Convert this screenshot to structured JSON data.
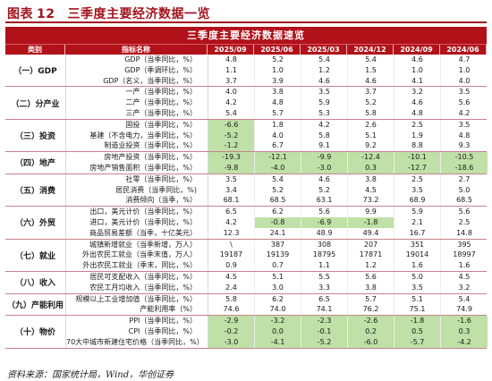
{
  "figure": {
    "label": "图表",
    "number": "12",
    "title": "三季度主要经济数据一览"
  },
  "table": {
    "banner": "三季度主要经济数据速览",
    "headers": {
      "category": "类别",
      "indicator": "指标名称",
      "periods": [
        "2025/09",
        "2025/06",
        "2025/03",
        "2024/12",
        "2024/09",
        "2024/06"
      ]
    },
    "groups": [
      {
        "name": "（一）GDP",
        "rows": [
          {
            "indicator": "GDP（当季同比，%）",
            "values": [
              "4.8",
              "5.2",
              "5.4",
              "5.4",
              "4.6",
              "4.7"
            ]
          },
          {
            "indicator": "GDP（季调环比，%）",
            "values": [
              "1.1",
              "1.0",
              "1.2",
              "1.5",
              "1.0",
              "1.0"
            ]
          },
          {
            "indicator": "GDP（名义，当季同比，%）",
            "values": [
              "3.7",
              "3.9",
              "4.6",
              "4.6",
              "4.1",
              "4.0"
            ]
          }
        ]
      },
      {
        "name": "（二）分产业",
        "rows": [
          {
            "indicator": "一产（当季同比，%）",
            "values": [
              "4.0",
              "3.8",
              "3.5",
              "3.7",
              "3.2",
              "3.5"
            ]
          },
          {
            "indicator": "二产（当季同比，%）",
            "values": [
              "4.2",
              "4.8",
              "5.9",
              "5.2",
              "4.6",
              "5.6"
            ]
          },
          {
            "indicator": "三产（当季同比，%）",
            "values": [
              "5.4",
              "5.7",
              "5.3",
              "5.8",
              "4.8",
              "4.2"
            ]
          }
        ]
      },
      {
        "name": "（三）投资",
        "rows": [
          {
            "indicator": "固投（当季同比，%）",
            "values": [
              "-6.6",
              "1.8",
              "4.2",
              "2.6",
              "2.5",
              "3.5"
            ],
            "hl": [
              0
            ]
          },
          {
            "indicator": "基建（不含电力，当季同比，%）",
            "values": [
              "-5.2",
              "4.0",
              "5.8",
              "5.1",
              "1.9",
              "4.8"
            ],
            "hl": [
              0
            ]
          },
          {
            "indicator": "制造业投资（当季同比，%）",
            "values": [
              "-1.2",
              "6.7",
              "9.1",
              "9.2",
              "8.8",
              "9.3"
            ],
            "hl": [
              0
            ]
          }
        ]
      },
      {
        "name": "（四）地产",
        "rows": [
          {
            "indicator": "房地产投资（当季同比，%）",
            "values": [
              "-19.3",
              "-12.1",
              "-9.9",
              "-12.4",
              "-10.1",
              "-10.5"
            ],
            "hl": [
              0,
              1,
              2,
              3,
              4,
              5
            ]
          },
          {
            "indicator": "房地产销售面积（当季同比，%）",
            "values": [
              "-9.8",
              "-4.0",
              "-3.0",
              "0.3",
              "-12.7",
              "-18.6"
            ],
            "hl": [
              0,
              1,
              2,
              3,
              4,
              5
            ]
          }
        ]
      },
      {
        "name": "（五）消费",
        "rows": [
          {
            "indicator": "社零（当季同比，%）",
            "values": [
              "3.5",
              "5.4",
              "4.6",
              "3.8",
              "2.5",
              "2.7"
            ]
          },
          {
            "indicator": "居民消费（当季同比，%)",
            "values": [
              "3.4",
              "5.2",
              "5.2",
              "4.5",
              "3.5",
              "5.0"
            ]
          },
          {
            "indicator": "消费倾向（当季，%）",
            "values": [
              "68.1",
              "68.5",
              "63.1",
              "73.2",
              "68.9",
              "68.5"
            ]
          }
        ]
      },
      {
        "name": "（六）外贸",
        "rows": [
          {
            "indicator": "出口，美元计价（当季同比，%）",
            "values": [
              "6.5",
              "6.2",
              "5.6",
              "9.9",
              "5.9",
              "5.6"
            ]
          },
          {
            "indicator": "进口，美元计价（当季同比，%）",
            "values": [
              "4.2",
              "-0.8",
              "-6.9",
              "-1.8",
              "2.1",
              "2.5"
            ],
            "hl": [
              1,
              2,
              3
            ]
          },
          {
            "indicator": "商品贸易差额（当季，十亿美元）",
            "values": [
              "12.3",
              "24.1",
              "48.9",
              "49.4",
              "16.7",
              "14.8"
            ]
          }
        ]
      },
      {
        "name": "（七）就业",
        "rows": [
          {
            "indicator": "城镇新增就业（当季新增，万人）",
            "values": [
              "\\",
              "387",
              "308",
              "207",
              "351",
              "395"
            ]
          },
          {
            "indicator": "外出农民工就业（当季末值，万人）",
            "values": [
              "19187",
              "19139",
              "18795",
              "17871",
              "19014",
              "18997"
            ]
          },
          {
            "indicator": "外出农民工就业（季末，同比，%）",
            "values": [
              "0.9",
              "0.7",
              "1.1",
              "1.2",
              "1.6",
              "1.6"
            ]
          }
        ]
      },
      {
        "name": "（八）收入",
        "rows": [
          {
            "indicator": "居民可支配收入（当季同比，%）",
            "values": [
              "4.5",
              "5.1",
              "5.5",
              "5.6",
              "5.0",
              "4.5"
            ]
          },
          {
            "indicator": "农民工月均收入（当季同比，%）",
            "values": [
              "2.4",
              "3.0",
              "3.3",
              "3.8",
              "3.5",
              "3.2"
            ]
          }
        ]
      },
      {
        "name": "（九）产能利用",
        "rows": [
          {
            "indicator": "规模以上工业增加值（当季同比，%）",
            "values": [
              "5.8",
              "6.2",
              "6.5",
              "5.7",
              "5.1",
              "5.4"
            ]
          },
          {
            "indicator": "产能利用率（%）",
            "values": [
              "74.6",
              "74.0",
              "74.1",
              "76.2",
              "75.1",
              "74.9"
            ]
          }
        ]
      },
      {
        "name": "（十）物价",
        "rows": [
          {
            "indicator": "PPI（当季同比，%）",
            "values": [
              "-2.9",
              "-3.2",
              "-2.3",
              "-2.6",
              "-1.8",
              "-1.6"
            ],
            "hl": [
              0,
              1,
              2,
              3,
              4,
              5
            ]
          },
          {
            "indicator": "CPI（当季同比，%）",
            "values": [
              "-0.2",
              "0.0",
              "-0.1",
              "0.2",
              "0.5",
              "0.3"
            ],
            "hl": [
              0,
              1,
              2,
              3,
              4,
              5
            ]
          },
          {
            "indicator": "70大中城市新建住宅价格（当季同比，%）",
            "values": [
              "-3.0",
              "-4.1",
              "-5.2",
              "-6.0",
              "-5.7",
              "-4.2"
            ],
            "hl": [
              0,
              1,
              2,
              3,
              4,
              5
            ]
          }
        ]
      }
    ]
  },
  "source": "资料来源：国家统计局，Wind，华创证券",
  "colors": {
    "accent_red": "#b1121a",
    "highlight_green": "#bfe0a6"
  }
}
